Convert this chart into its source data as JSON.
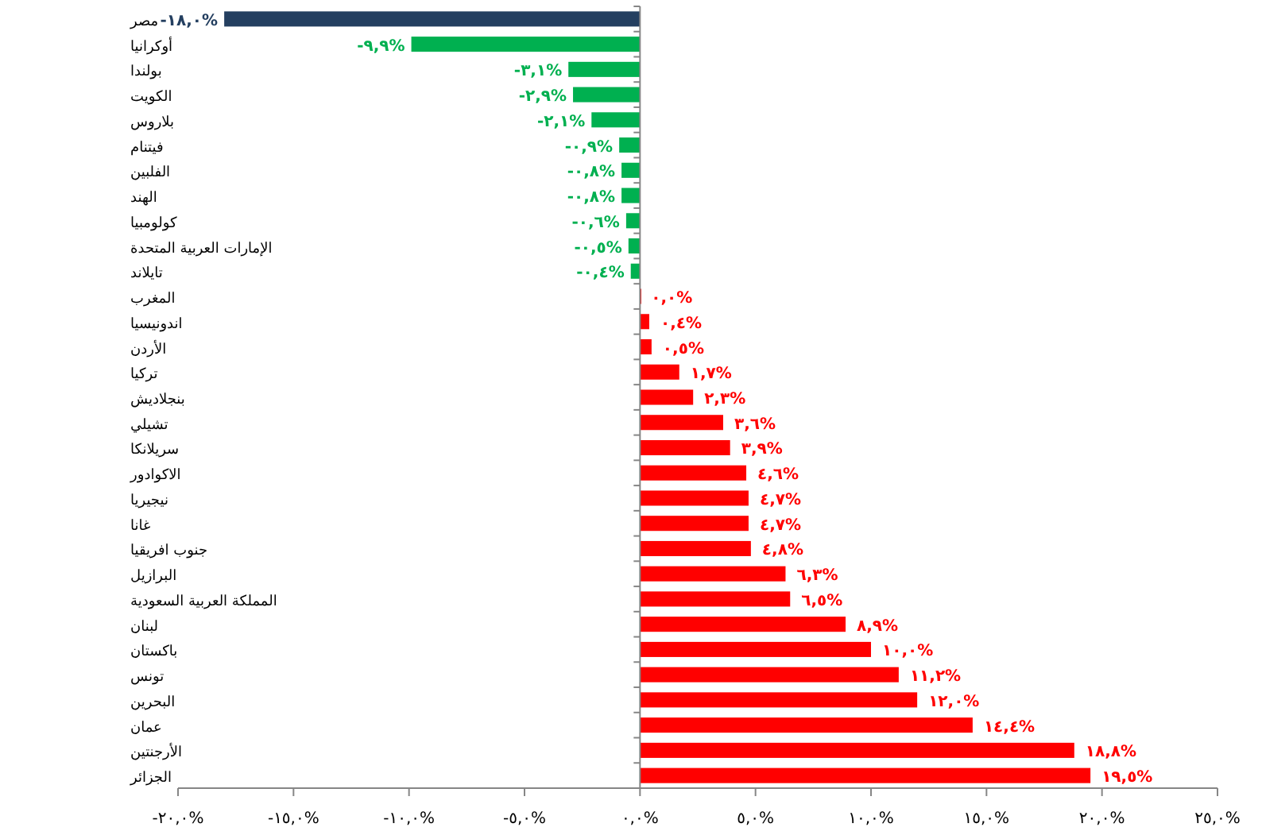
{
  "chart_data": {
    "type": "bar",
    "orientation": "horizontal",
    "categories": [
      "مصر",
      "أوكرانيا",
      "بولندا",
      "الكويت",
      "بلاروس",
      "فيتنام",
      "الفلبين",
      "الهند",
      "كولومبيا",
      "الإمارات العربية المتحدة",
      "تايلاند",
      "المغرب",
      "اندونيسيا",
      "الأردن",
      "تركيا",
      "بنجلاديش",
      "تشيلي",
      "سريلانكا",
      "الاكوادور",
      "نيجيريا",
      "غانا",
      "جنوب افريقيا",
      "البرازيل",
      "المملكة العربية السعودية",
      "لبنان",
      "باكستان",
      "تونس",
      "البحرين",
      "عمان",
      "الأرجنتين",
      "الجزائر"
    ],
    "values": [
      -18.0,
      -9.9,
      -3.1,
      -2.9,
      -2.1,
      -0.9,
      -0.8,
      -0.8,
      -0.6,
      -0.5,
      -0.4,
      0.0,
      0.4,
      0.5,
      1.7,
      2.3,
      3.6,
      3.9,
      4.6,
      4.7,
      4.7,
      4.8,
      6.3,
      6.5,
      8.9,
      10.0,
      11.2,
      12.0,
      14.4,
      18.8,
      19.5
    ],
    "value_labels": [
      "-١٨,٠%",
      "-٩,٩%",
      "-٣,١%",
      "-٢,٩%",
      "-٢,١%",
      "-٠,٩%",
      "-٠,٨%",
      "-٠,٨%",
      "-٠,٦%",
      "-٠,٥%",
      "-٠,٤%",
      "٠,٠%",
      "٠,٤%",
      "٠,٥%",
      "١,٧%",
      "٢,٣%",
      "٣,٦%",
      "٣,٩%",
      "٤,٦%",
      "٤,٧%",
      "٤,٧%",
      "٤,٨%",
      "٦,٣%",
      "٦,٥%",
      "٨,٩%",
      "١٠,٠%",
      "١١,٢%",
      "١٢,٠%",
      "١٤,٤%",
      "١٨,٨%",
      "١٩,٥%"
    ],
    "colors": [
      "#243f60",
      "#00b050",
      "#00b050",
      "#00b050",
      "#00b050",
      "#00b050",
      "#00b050",
      "#00b050",
      "#00b050",
      "#00b050",
      "#00b050",
      "#ff0000",
      "#ff0000",
      "#ff0000",
      "#ff0000",
      "#ff0000",
      "#ff0000",
      "#ff0000",
      "#ff0000",
      "#ff0000",
      "#ff0000",
      "#ff0000",
      "#ff0000",
      "#ff0000",
      "#ff0000",
      "#ff0000",
      "#ff0000",
      "#ff0000",
      "#ff0000",
      "#ff0000",
      "#ff0000"
    ],
    "xlim": [
      -20,
      25
    ],
    "xticks": [
      {
        "value": -20,
        "label": "-٢٠,٠%"
      },
      {
        "value": -15,
        "label": "-١٥,٠%"
      },
      {
        "value": -10,
        "label": "-١٠,٠%"
      },
      {
        "value": -5,
        "label": "-٥,٠%"
      },
      {
        "value": 0,
        "label": "٠,٠%"
      },
      {
        "value": 5,
        "label": "٥,٠%"
      },
      {
        "value": 10,
        "label": "١٠,٠%"
      },
      {
        "value": 15,
        "label": "١٥,٠%"
      },
      {
        "value": 20,
        "label": "٢٠,٠%"
      },
      {
        "value": 25,
        "label": "٢٥,٠%"
      }
    ]
  }
}
